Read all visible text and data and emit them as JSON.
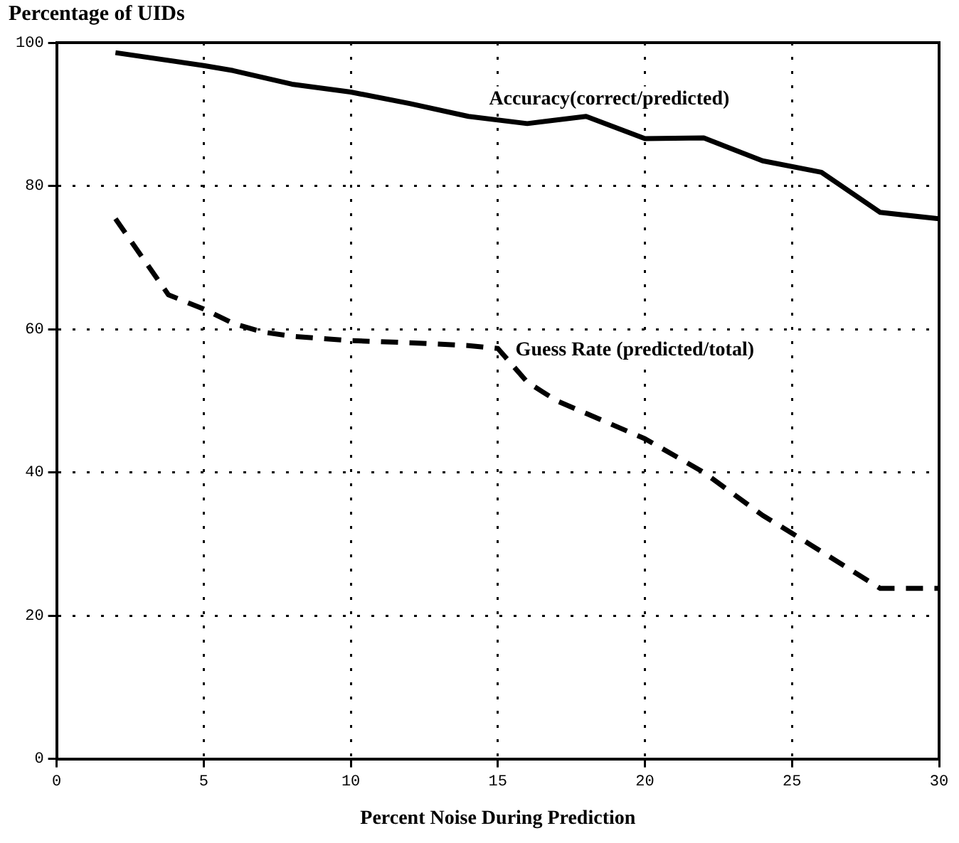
{
  "chart_data": {
    "type": "line",
    "title": "Percentage of UIDs",
    "xlabel": "Percent Noise During Prediction",
    "xlim": [
      0,
      30
    ],
    "xticks": [
      0,
      5,
      10,
      15,
      20,
      25,
      30
    ],
    "ylim": [
      0,
      100
    ],
    "yticks": [
      0,
      20,
      40,
      60,
      80,
      100
    ],
    "grid": true,
    "legend": false,
    "marker": "none",
    "series": [
      {
        "name": "Accuracy(correct/predicted)",
        "color": "#000000",
        "line_style": "solid",
        "x": [
          2,
          5,
          6,
          8,
          10,
          12,
          14,
          16,
          18,
          20,
          22,
          24,
          26,
          28,
          30
        ],
        "values": [
          98.6,
          96.8,
          96.1,
          94.2,
          93.1,
          91.5,
          89.7,
          88.7,
          89.7,
          86.6,
          86.7,
          83.5,
          81.9,
          76.3,
          75.4
        ]
      },
      {
        "name": "Guess Rate (predicted/total)",
        "color": "#000000",
        "line_style": "dashed",
        "x": [
          2,
          3.8,
          5,
          6,
          7,
          8,
          10,
          12,
          14,
          15,
          16,
          17,
          20,
          22,
          24,
          25,
          28,
          30
        ],
        "values": [
          75.4,
          64.8,
          62.8,
          60.8,
          59.6,
          59.0,
          58.4,
          58.1,
          57.7,
          57.3,
          52.6,
          50.0,
          44.7,
          40.0,
          34.0,
          31.5,
          23.8,
          23.8
        ]
      }
    ]
  }
}
